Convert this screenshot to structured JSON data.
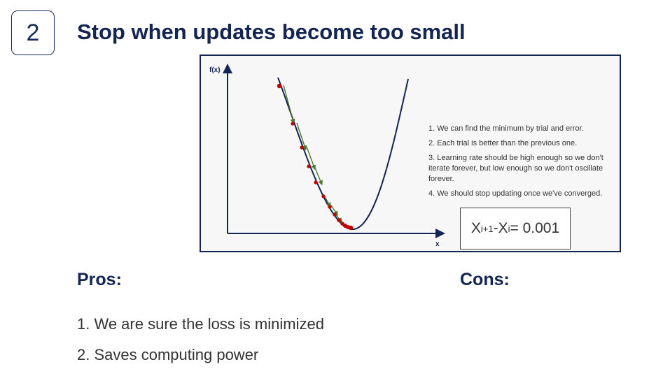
{
  "slide": {
    "number": "2",
    "title": "Stop when updates become too small"
  },
  "diagram": {
    "y_axis_label": "f(x)",
    "x_axis_label": "x",
    "notes": [
      "1. We can find the minimum by trial and error.",
      "2. Each trial is better than the previous one.",
      "3. Learning rate should be high enough so we don't iterate forever, but low enough so we don't oscillate forever.",
      "4. We should stop updating once we've converged."
    ],
    "formula": {
      "lhs_a": "X",
      "lhs_a_sub": "i+1",
      "minus": " - ",
      "lhs_b": "X",
      "lhs_b_sub": "i",
      "rhs": " = 0.001"
    },
    "colors": {
      "curve": "#142453",
      "points": "#c00000",
      "arrows": "#4c7a2c"
    }
  },
  "pros": {
    "heading": "Pros:",
    "items": [
      "1. We are sure the loss is minimized",
      "2. Saves computing power"
    ]
  },
  "cons": {
    "heading": "Cons:"
  }
}
